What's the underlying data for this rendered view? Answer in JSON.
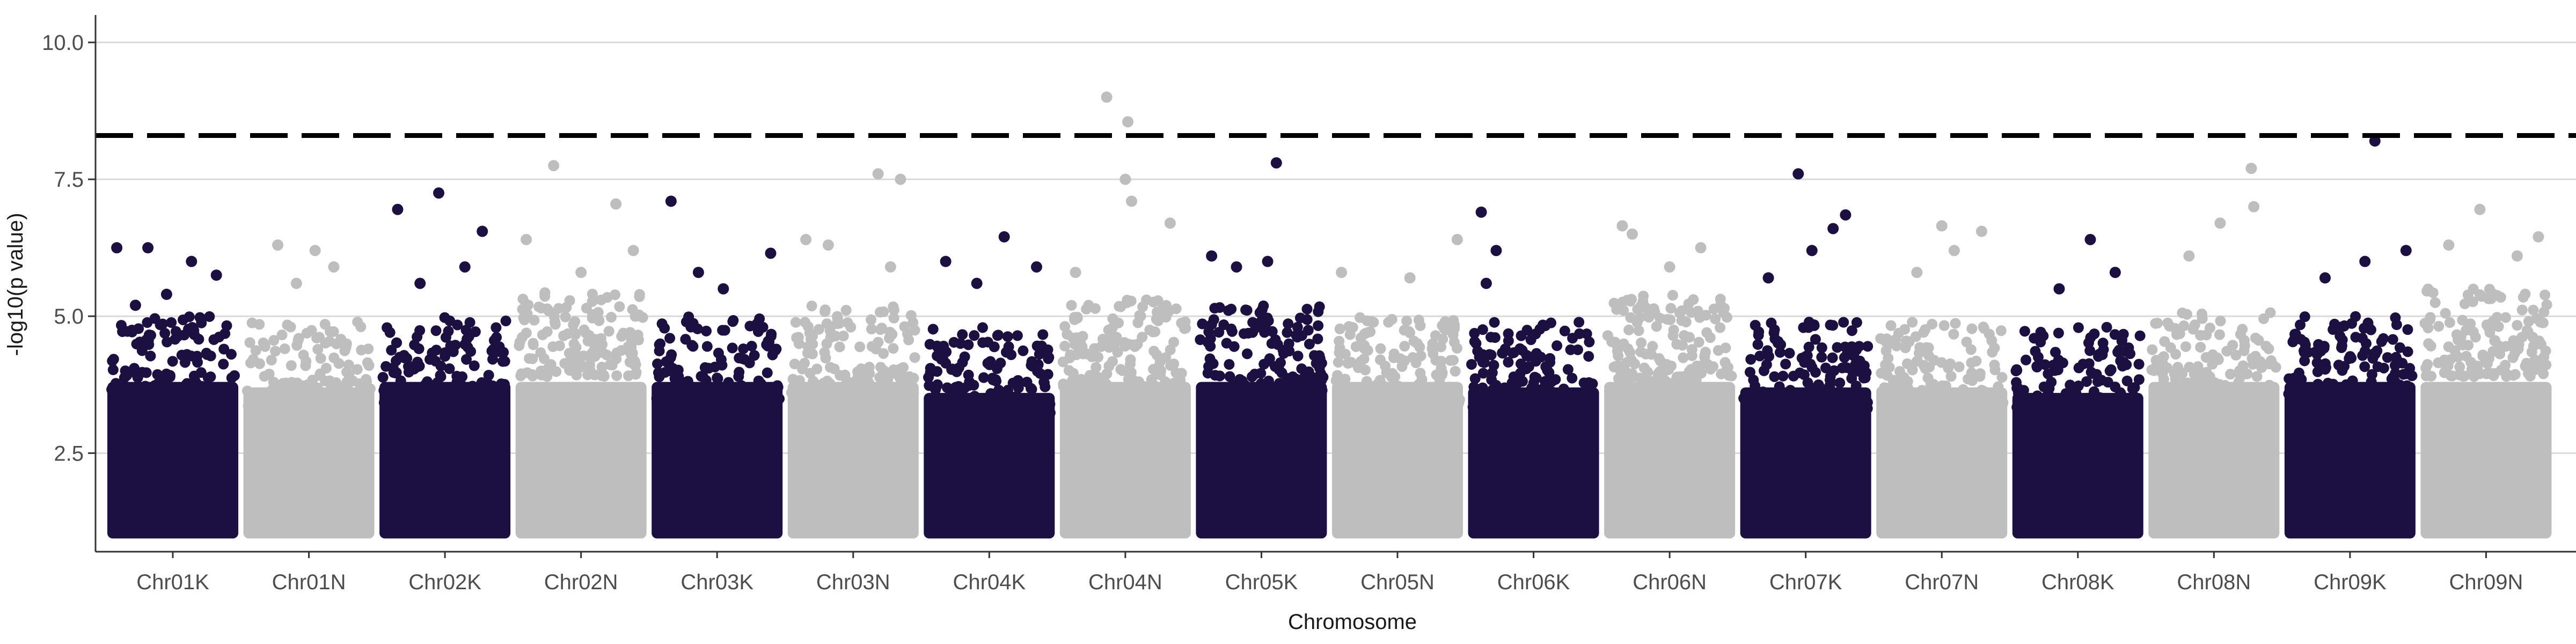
{
  "chart_data": {
    "type": "scatter",
    "subtype": "manhattan",
    "title": "",
    "xlabel": "Chromosome",
    "ylabel": "-log10(p value)",
    "ylim": [
      0.7,
      10.5
    ],
    "yticks": [
      2.5,
      5.0,
      7.5,
      10.0
    ],
    "ytick_labels": [
      "2.5",
      "5.0",
      "7.5",
      "10.0"
    ],
    "grid": "horizontal major",
    "legend": "none",
    "threshold": 8.3,
    "colors": {
      "odd": "#1c1040",
      "even": "#bebebe",
      "threshold": "#000000",
      "grid": "#d9d9d9"
    },
    "categories": [
      "Chr01K",
      "Chr01N",
      "Chr02K",
      "Chr02N",
      "Chr03K",
      "Chr03N",
      "Chr04K",
      "Chr04N",
      "Chr05K",
      "Chr05N",
      "Chr06K",
      "Chr06N",
      "Chr07K",
      "Chr07N",
      "Chr08K",
      "Chr08N",
      "Chr09K",
      "Chr09N"
    ],
    "band_top": [
      4.4,
      4.3,
      4.4,
      4.9,
      4.4,
      4.6,
      4.2,
      4.7,
      4.6,
      4.4,
      4.3,
      4.8,
      4.3,
      4.3,
      4.2,
      4.5,
      4.4,
      4.9
    ],
    "peaks": [
      {
        "chr": 0,
        "x": 0.05,
        "y": 6.25
      },
      {
        "chr": 0,
        "x": 0.3,
        "y": 6.25
      },
      {
        "chr": 0,
        "x": 0.65,
        "y": 6.0
      },
      {
        "chr": 0,
        "x": 0.85,
        "y": 5.75
      },
      {
        "chr": 0,
        "x": 0.2,
        "y": 5.2
      },
      {
        "chr": 0,
        "x": 0.45,
        "y": 5.4
      },
      {
        "chr": 1,
        "x": 0.25,
        "y": 6.3
      },
      {
        "chr": 1,
        "x": 0.55,
        "y": 6.2
      },
      {
        "chr": 1,
        "x": 0.7,
        "y": 5.9
      },
      {
        "chr": 1,
        "x": 0.4,
        "y": 5.6
      },
      {
        "chr": 2,
        "x": 0.12,
        "y": 6.95
      },
      {
        "chr": 2,
        "x": 0.45,
        "y": 7.25
      },
      {
        "chr": 2,
        "x": 0.8,
        "y": 6.55
      },
      {
        "chr": 2,
        "x": 0.66,
        "y": 5.9
      },
      {
        "chr": 2,
        "x": 0.3,
        "y": 5.6
      },
      {
        "chr": 3,
        "x": 0.28,
        "y": 7.75
      },
      {
        "chr": 3,
        "x": 0.78,
        "y": 7.05
      },
      {
        "chr": 3,
        "x": 0.92,
        "y": 6.2
      },
      {
        "chr": 3,
        "x": 0.06,
        "y": 6.4
      },
      {
        "chr": 3,
        "x": 0.5,
        "y": 5.8
      },
      {
        "chr": 4,
        "x": 0.13,
        "y": 7.1
      },
      {
        "chr": 4,
        "x": 0.35,
        "y": 5.8
      },
      {
        "chr": 4,
        "x": 0.55,
        "y": 5.5
      },
      {
        "chr": 4,
        "x": 0.93,
        "y": 6.15
      },
      {
        "chr": 5,
        "x": 0.7,
        "y": 7.6
      },
      {
        "chr": 5,
        "x": 0.88,
        "y": 7.5
      },
      {
        "chr": 5,
        "x": 0.3,
        "y": 6.3
      },
      {
        "chr": 5,
        "x": 0.12,
        "y": 6.4
      },
      {
        "chr": 5,
        "x": 0.8,
        "y": 5.9
      },
      {
        "chr": 6,
        "x": 0.15,
        "y": 6.0
      },
      {
        "chr": 6,
        "x": 0.62,
        "y": 6.45
      },
      {
        "chr": 6,
        "x": 0.88,
        "y": 5.9
      },
      {
        "chr": 6,
        "x": 0.4,
        "y": 5.6
      },
      {
        "chr": 7,
        "x": 0.35,
        "y": 9.0
      },
      {
        "chr": 7,
        "x": 0.52,
        "y": 8.55
      },
      {
        "chr": 7,
        "x": 0.5,
        "y": 7.5
      },
      {
        "chr": 7,
        "x": 0.86,
        "y": 6.7
      },
      {
        "chr": 7,
        "x": 0.55,
        "y": 7.1
      },
      {
        "chr": 7,
        "x": 0.1,
        "y": 5.8
      },
      {
        "chr": 8,
        "x": 0.62,
        "y": 7.8
      },
      {
        "chr": 8,
        "x": 0.1,
        "y": 6.1
      },
      {
        "chr": 8,
        "x": 0.55,
        "y": 6.0
      },
      {
        "chr": 8,
        "x": 0.3,
        "y": 5.9
      },
      {
        "chr": 9,
        "x": 0.05,
        "y": 5.8
      },
      {
        "chr": 9,
        "x": 0.6,
        "y": 5.7
      },
      {
        "chr": 9,
        "x": 0.98,
        "y": 6.4
      },
      {
        "chr": 10,
        "x": 0.08,
        "y": 6.9
      },
      {
        "chr": 10,
        "x": 0.2,
        "y": 6.2
      },
      {
        "chr": 10,
        "x": 0.12,
        "y": 5.6
      },
      {
        "chr": 11,
        "x": 0.12,
        "y": 6.65
      },
      {
        "chr": 11,
        "x": 0.2,
        "y": 6.5
      },
      {
        "chr": 11,
        "x": 0.75,
        "y": 6.25
      },
      {
        "chr": 11,
        "x": 0.5,
        "y": 5.9
      },
      {
        "chr": 12,
        "x": 0.44,
        "y": 7.6
      },
      {
        "chr": 12,
        "x": 0.72,
        "y": 6.6
      },
      {
        "chr": 12,
        "x": 0.82,
        "y": 6.85
      },
      {
        "chr": 12,
        "x": 0.55,
        "y": 6.2
      },
      {
        "chr": 12,
        "x": 0.2,
        "y": 5.7
      },
      {
        "chr": 13,
        "x": 0.5,
        "y": 6.65
      },
      {
        "chr": 13,
        "x": 0.82,
        "y": 6.55
      },
      {
        "chr": 13,
        "x": 0.6,
        "y": 6.2
      },
      {
        "chr": 13,
        "x": 0.3,
        "y": 5.8
      },
      {
        "chr": 14,
        "x": 0.6,
        "y": 6.4
      },
      {
        "chr": 14,
        "x": 0.8,
        "y": 5.8
      },
      {
        "chr": 14,
        "x": 0.35,
        "y": 5.5
      },
      {
        "chr": 15,
        "x": 0.8,
        "y": 7.7
      },
      {
        "chr": 15,
        "x": 0.82,
        "y": 7.0
      },
      {
        "chr": 15,
        "x": 0.55,
        "y": 6.7
      },
      {
        "chr": 15,
        "x": 0.3,
        "y": 6.1
      },
      {
        "chr": 16,
        "x": 0.7,
        "y": 8.2
      },
      {
        "chr": 16,
        "x": 0.62,
        "y": 6.0
      },
      {
        "chr": 16,
        "x": 0.95,
        "y": 6.2
      },
      {
        "chr": 16,
        "x": 0.3,
        "y": 5.7
      },
      {
        "chr": 17,
        "x": 0.45,
        "y": 6.95
      },
      {
        "chr": 17,
        "x": 0.92,
        "y": 6.45
      },
      {
        "chr": 17,
        "x": 0.75,
        "y": 6.1
      },
      {
        "chr": 17,
        "x": 0.2,
        "y": 6.3
      }
    ]
  }
}
